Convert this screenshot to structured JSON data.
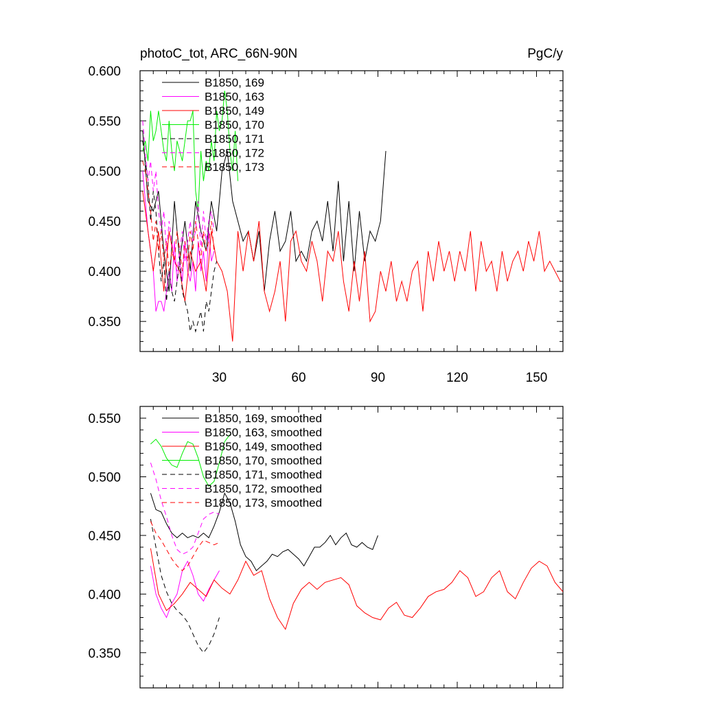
{
  "header": {
    "title": "photoC_tot, ARC_66N-90N",
    "units": "PgC/y"
  },
  "chart_data": [
    {
      "type": "line",
      "panel": "top",
      "title": "photoC_tot, ARC_66N-90N",
      "units": "PgC/y",
      "xlim": [
        0,
        160
      ],
      "ylim": [
        0.32,
        0.6
      ],
      "x_ticks": [
        30,
        60,
        90,
        120,
        150
      ],
      "x_tick_labels": [
        "30",
        "60",
        "90",
        "120",
        "150"
      ],
      "y_ticks": [
        0.35,
        0.4,
        0.45,
        0.5,
        0.55,
        0.6
      ],
      "y_tick_labels": [
        "0.350",
        "0.400",
        "0.450",
        "0.500",
        "0.550",
        "0.600"
      ],
      "grid": false,
      "legend_position": "top-left",
      "series": [
        {
          "name": "B1850, 169",
          "color": "#000000",
          "dash": "solid",
          "x": [
            1,
            3,
            5,
            7,
            9,
            11,
            13,
            15,
            17,
            19,
            21,
            23,
            25,
            27,
            29,
            31,
            33,
            35,
            37,
            39,
            41,
            43,
            45,
            47,
            49,
            51,
            53,
            55,
            57,
            59,
            61,
            63,
            65,
            67,
            69,
            71,
            73,
            75,
            77,
            79,
            81,
            83,
            85,
            87,
            89,
            91,
            93
          ],
          "y": [
            0.54,
            0.47,
            0.46,
            0.48,
            0.42,
            0.38,
            0.47,
            0.41,
            0.45,
            0.4,
            0.47,
            0.44,
            0.42,
            0.47,
            0.44,
            0.5,
            0.52,
            0.47,
            0.45,
            0.43,
            0.44,
            0.41,
            0.44,
            0.38,
            0.43,
            0.46,
            0.42,
            0.43,
            0.46,
            0.41,
            0.42,
            0.41,
            0.44,
            0.45,
            0.43,
            0.47,
            0.42,
            0.49,
            0.41,
            0.47,
            0.4,
            0.46,
            0.41,
            0.44,
            0.43,
            0.45,
            0.52
          ]
        },
        {
          "name": "B1850, 163",
          "color": "#ff00ff",
          "dash": "solid",
          "x": [
            1,
            2,
            3,
            4,
            5,
            6,
            7,
            8,
            9,
            10,
            11,
            12,
            13,
            14,
            15,
            16,
            17,
            18,
            19,
            20,
            21,
            22,
            23,
            24,
            25,
            26,
            27,
            28
          ],
          "y": [
            0.5,
            0.47,
            0.44,
            0.42,
            0.4,
            0.36,
            0.37,
            0.37,
            0.36,
            0.38,
            0.4,
            0.38,
            0.43,
            0.39,
            0.41,
            0.39,
            0.43,
            0.4,
            0.39,
            0.41,
            0.38,
            0.43,
            0.4,
            0.42,
            0.39,
            0.44,
            0.41,
            0.42
          ]
        },
        {
          "name": "B1850, 149",
          "color": "#ff0000",
          "dash": "solid",
          "x": [
            1,
            3,
            5,
            7,
            9,
            11,
            13,
            15,
            17,
            19,
            21,
            23,
            25,
            27,
            29,
            31,
            33,
            35,
            37,
            39,
            41,
            43,
            45,
            47,
            49,
            51,
            53,
            55,
            57,
            59,
            61,
            63,
            65,
            67,
            69,
            71,
            73,
            75,
            77,
            79,
            81,
            83,
            85,
            87,
            89,
            91,
            93,
            95,
            97,
            99,
            101,
            103,
            105,
            107,
            109,
            111,
            113,
            115,
            117,
            119,
            121,
            123,
            125,
            127,
            129,
            131,
            133,
            135,
            137,
            139,
            141,
            143,
            145,
            147,
            149,
            151,
            153,
            155,
            157,
            159
          ],
          "y": [
            0.48,
            0.44,
            0.4,
            0.44,
            0.38,
            0.44,
            0.41,
            0.4,
            0.37,
            0.42,
            0.4,
            0.41,
            0.38,
            0.44,
            0.41,
            0.4,
            0.38,
            0.33,
            0.44,
            0.4,
            0.44,
            0.41,
            0.45,
            0.38,
            0.36,
            0.38,
            0.41,
            0.35,
            0.43,
            0.44,
            0.41,
            0.4,
            0.43,
            0.41,
            0.37,
            0.42,
            0.41,
            0.44,
            0.39,
            0.36,
            0.41,
            0.37,
            0.42,
            0.35,
            0.36,
            0.4,
            0.38,
            0.41,
            0.37,
            0.39,
            0.37,
            0.4,
            0.41,
            0.36,
            0.42,
            0.39,
            0.43,
            0.4,
            0.42,
            0.39,
            0.42,
            0.4,
            0.44,
            0.38,
            0.43,
            0.4,
            0.41,
            0.38,
            0.42,
            0.39,
            0.41,
            0.42,
            0.4,
            0.43,
            0.41,
            0.44,
            0.4,
            0.41,
            0.4,
            0.39
          ]
        },
        {
          "name": "B1850, 170",
          "color": "#00ee00",
          "dash": "solid",
          "x": [
            1,
            2,
            3,
            4,
            5,
            6,
            7,
            8,
            9,
            10,
            11,
            12,
            13,
            14,
            15,
            16,
            17,
            18,
            19,
            20,
            21,
            22,
            23,
            24,
            25,
            26,
            27,
            28,
            29,
            30,
            31,
            32,
            33,
            34,
            35,
            36,
            37
          ],
          "y": [
            0.52,
            0.53,
            0.51,
            0.56,
            0.53,
            0.54,
            0.56,
            0.54,
            0.52,
            0.51,
            0.55,
            0.52,
            0.5,
            0.53,
            0.52,
            0.51,
            0.53,
            0.55,
            0.55,
            0.56,
            0.48,
            0.46,
            0.52,
            0.49,
            0.51,
            0.5,
            0.53,
            0.51,
            0.56,
            0.54,
            0.55,
            0.58,
            0.56,
            0.52,
            0.5,
            0.54,
            0.49
          ]
        },
        {
          "name": "B1850, 171",
          "color": "#000000",
          "dash": "dashed",
          "x": [
            1,
            2,
            3,
            4,
            5,
            6,
            7,
            8,
            9,
            10,
            11,
            12,
            13,
            14,
            15,
            16,
            17,
            18,
            19,
            20,
            21,
            22,
            23,
            24,
            25,
            26,
            27,
            28,
            29
          ],
          "y": [
            0.53,
            0.51,
            0.49,
            0.45,
            0.48,
            0.46,
            0.42,
            0.39,
            0.41,
            0.37,
            0.4,
            0.38,
            0.37,
            0.39,
            0.41,
            0.38,
            0.37,
            0.36,
            0.34,
            0.35,
            0.34,
            0.35,
            0.36,
            0.34,
            0.37,
            0.36,
            0.38,
            0.4,
            0.41
          ]
        },
        {
          "name": "B1850, 172",
          "color": "#ff00ff",
          "dash": "dashed",
          "x": [
            1,
            2,
            3,
            4,
            5,
            6,
            7,
            8,
            9,
            10,
            11,
            12,
            13,
            14,
            15,
            16,
            17,
            18,
            19,
            20,
            21,
            22,
            23,
            24,
            25,
            26,
            27,
            28
          ],
          "y": [
            0.55,
            0.52,
            0.49,
            0.51,
            0.48,
            0.5,
            0.46,
            0.44,
            0.46,
            0.42,
            0.45,
            0.43,
            0.41,
            0.4,
            0.42,
            0.44,
            0.41,
            0.43,
            0.45,
            0.43,
            0.44,
            0.47,
            0.42,
            0.46,
            0.43,
            0.45,
            0.46,
            0.44
          ]
        },
        {
          "name": "B1850, 173",
          "color": "#ff0000",
          "dash": "dashed",
          "x": [
            1,
            2,
            3,
            4,
            5,
            6,
            7,
            8,
            9,
            10,
            11,
            12,
            13,
            14,
            15,
            16,
            17,
            18,
            19,
            20,
            21,
            22,
            23,
            24,
            25,
            26,
            27,
            28
          ],
          "y": [
            0.51,
            0.5,
            0.48,
            0.46,
            0.43,
            0.45,
            0.42,
            0.44,
            0.41,
            0.43,
            0.4,
            0.42,
            0.41,
            0.44,
            0.42,
            0.4,
            0.43,
            0.41,
            0.44,
            0.42,
            0.45,
            0.43,
            0.41,
            0.44,
            0.42,
            0.43,
            0.45,
            0.42
          ]
        }
      ]
    },
    {
      "type": "line",
      "panel": "bottom",
      "xlim": [
        0,
        160
      ],
      "ylim": [
        0.32,
        0.56
      ],
      "x_ticks": [
        30,
        60,
        90,
        120,
        150
      ],
      "y_ticks": [
        0.35,
        0.4,
        0.45,
        0.5,
        0.55
      ],
      "y_tick_labels": [
        "0.350",
        "0.400",
        "0.450",
        "0.500",
        "0.550"
      ],
      "grid": false,
      "legend_position": "top-left",
      "series": [
        {
          "name": "B1850, 169, smoothed",
          "color": "#000000",
          "dash": "solid",
          "x": [
            4,
            6,
            8,
            10,
            12,
            14,
            16,
            18,
            20,
            22,
            24,
            26,
            28,
            30,
            32,
            34,
            36,
            38,
            40,
            42,
            44,
            46,
            48,
            50,
            52,
            54,
            56,
            58,
            60,
            62,
            64,
            66,
            68,
            70,
            72,
            74,
            76,
            78,
            80,
            82,
            84,
            86,
            88,
            90
          ],
          "y": [
            0.486,
            0.472,
            0.47,
            0.46,
            0.452,
            0.448,
            0.452,
            0.448,
            0.45,
            0.448,
            0.452,
            0.448,
            0.458,
            0.47,
            0.486,
            0.478,
            0.462,
            0.442,
            0.432,
            0.428,
            0.42,
            0.424,
            0.428,
            0.434,
            0.432,
            0.436,
            0.438,
            0.434,
            0.43,
            0.424,
            0.432,
            0.44,
            0.44,
            0.444,
            0.45,
            0.442,
            0.448,
            0.452,
            0.442,
            0.44,
            0.444,
            0.44,
            0.438,
            0.45
          ]
        },
        {
          "name": "B1850, 163, smoothed",
          "color": "#ff00ff",
          "dash": "solid",
          "x": [
            4,
            6,
            8,
            10,
            12,
            14,
            16,
            18,
            20,
            22,
            24,
            26,
            28,
            30
          ],
          "y": [
            0.424,
            0.4,
            0.388,
            0.38,
            0.392,
            0.4,
            0.42,
            0.428,
            0.416,
            0.4,
            0.394,
            0.404,
            0.412,
            0.42
          ]
        },
        {
          "name": "B1850, 149, smoothed",
          "color": "#ff0000",
          "dash": "solid",
          "x": [
            4,
            7,
            10,
            13,
            16,
            19,
            22,
            25,
            28,
            31,
            34,
            37,
            40,
            43,
            46,
            49,
            52,
            55,
            58,
            61,
            64,
            67,
            70,
            73,
            76,
            79,
            82,
            85,
            88,
            91,
            94,
            97,
            100,
            103,
            106,
            109,
            112,
            115,
            118,
            121,
            124,
            127,
            130,
            133,
            136,
            139,
            142,
            145,
            148,
            151,
            154,
            157,
            160
          ],
          "y": [
            0.439,
            0.4,
            0.386,
            0.392,
            0.4,
            0.41,
            0.404,
            0.398,
            0.412,
            0.405,
            0.4,
            0.412,
            0.428,
            0.416,
            0.42,
            0.396,
            0.38,
            0.37,
            0.392,
            0.404,
            0.41,
            0.404,
            0.41,
            0.412,
            0.414,
            0.408,
            0.39,
            0.384,
            0.38,
            0.378,
            0.388,
            0.393,
            0.382,
            0.38,
            0.388,
            0.398,
            0.402,
            0.404,
            0.41,
            0.42,
            0.414,
            0.398,
            0.402,
            0.414,
            0.42,
            0.402,
            0.396,
            0.41,
            0.422,
            0.428,
            0.424,
            0.41,
            0.402
          ]
        },
        {
          "name": "B1850, 170, smoothed",
          "color": "#00ee00",
          "dash": "solid",
          "x": [
            4,
            6,
            8,
            10,
            12,
            14,
            16,
            18,
            20,
            22,
            24,
            26,
            28,
            30,
            32,
            34
          ],
          "y": [
            0.528,
            0.532,
            0.526,
            0.516,
            0.51,
            0.508,
            0.52,
            0.53,
            0.528,
            0.516,
            0.5,
            0.492,
            0.496,
            0.512,
            0.53,
            0.536
          ]
        },
        {
          "name": "B1850, 171, smoothed",
          "color": "#000000",
          "dash": "dashed",
          "x": [
            4,
            6,
            8,
            10,
            12,
            14,
            16,
            18,
            20,
            22,
            24,
            26,
            28,
            30
          ],
          "y": [
            0.464,
            0.44,
            0.416,
            0.402,
            0.392,
            0.386,
            0.382,
            0.376,
            0.366,
            0.356,
            0.35,
            0.356,
            0.366,
            0.38
          ]
        },
        {
          "name": "B1850, 172, smoothed",
          "color": "#ff00ff",
          "dash": "dashed",
          "x": [
            4,
            6,
            8,
            10,
            12,
            14,
            16,
            18,
            20,
            22,
            24,
            26,
            28,
            30
          ],
          "y": [
            0.512,
            0.498,
            0.48,
            0.466,
            0.45,
            0.438,
            0.434,
            0.436,
            0.44,
            0.452,
            0.464,
            0.468,
            0.47,
            0.468
          ]
        },
        {
          "name": "B1850, 173, smoothed",
          "color": "#ff0000",
          "dash": "dashed",
          "x": [
            4,
            6,
            8,
            10,
            12,
            14,
            16,
            18,
            20,
            22,
            24,
            26,
            28,
            30
          ],
          "y": [
            0.462,
            0.452,
            0.446,
            0.438,
            0.43,
            0.424,
            0.42,
            0.424,
            0.432,
            0.44,
            0.446,
            0.444,
            0.442,
            0.444
          ]
        }
      ]
    }
  ]
}
